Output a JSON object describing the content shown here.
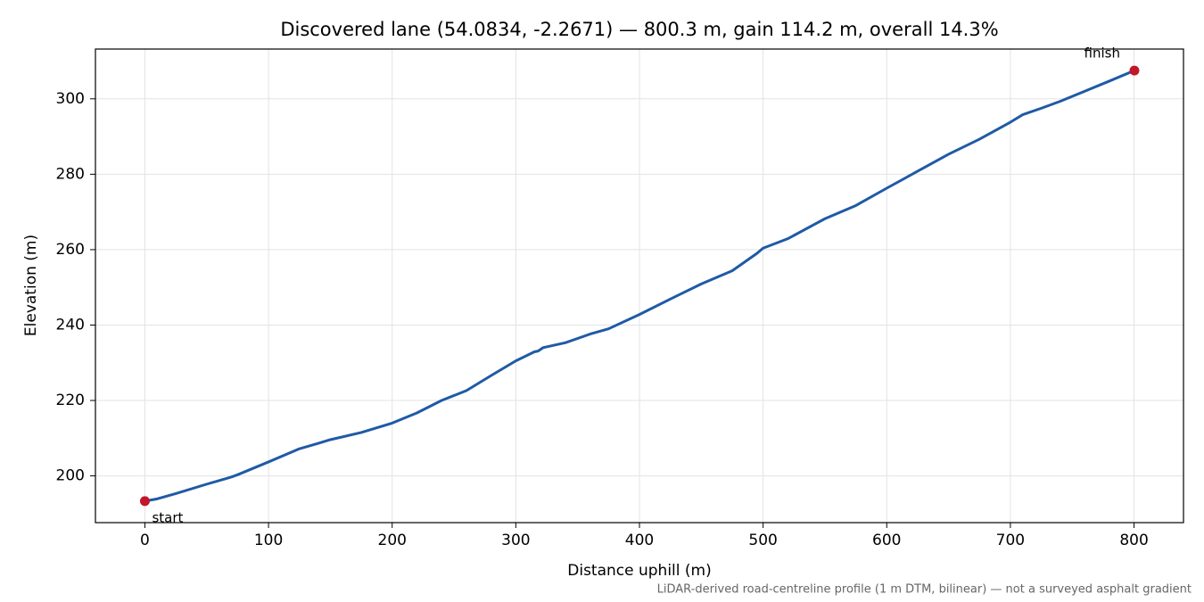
{
  "chart_data": {
    "type": "line",
    "title": "Discovered lane (54.0834, -2.2671) — 800.3 m, gain 114.2 m, overall 14.3%",
    "xlabel": "Distance uphill (m)",
    "ylabel": "Elevation (m)",
    "note": "LiDAR-derived road-centreline profile (1 m DTM, bilinear) — not a surveyed asphalt gradient",
    "x": [
      0,
      10,
      25,
      50,
      70,
      75,
      100,
      120,
      125,
      140,
      150,
      175,
      200,
      220,
      240,
      260,
      280,
      300,
      315,
      318,
      322,
      340,
      360,
      375,
      400,
      425,
      450,
      475,
      495,
      500,
      520,
      550,
      575,
      600,
      625,
      650,
      675,
      700,
      710,
      725,
      740,
      760,
      780,
      800.3
    ],
    "values": [
      193.3,
      193.9,
      195.3,
      197.8,
      199.7,
      200.3,
      203.7,
      206.5,
      207.2,
      208.6,
      209.6,
      211.5,
      214.0,
      216.7,
      220.0,
      222.6,
      226.6,
      230.5,
      232.9,
      233.1,
      234.0,
      235.3,
      237.6,
      239.0,
      242.8,
      246.9,
      250.9,
      254.4,
      259.0,
      260.4,
      262.9,
      268.2,
      271.7,
      276.3,
      280.8,
      285.3,
      289.3,
      293.8,
      295.8,
      297.5,
      299.3,
      302.0,
      304.7,
      307.5
    ],
    "color": "#1f5aa6",
    "annotations": [
      {
        "text": "start",
        "x": 0,
        "y": 193.3
      },
      {
        "text": "finish",
        "x": 800.3,
        "y": 307.5
      }
    ],
    "marker_color": "#c0182a",
    "xlim": [
      -40,
      840
    ],
    "ylim": [
      187.6,
      313.2
    ],
    "xticks": [
      0,
      100,
      200,
      300,
      400,
      500,
      600,
      700,
      800
    ],
    "yticks": [
      200,
      220,
      240,
      260,
      280,
      300
    ],
    "grid": true
  }
}
